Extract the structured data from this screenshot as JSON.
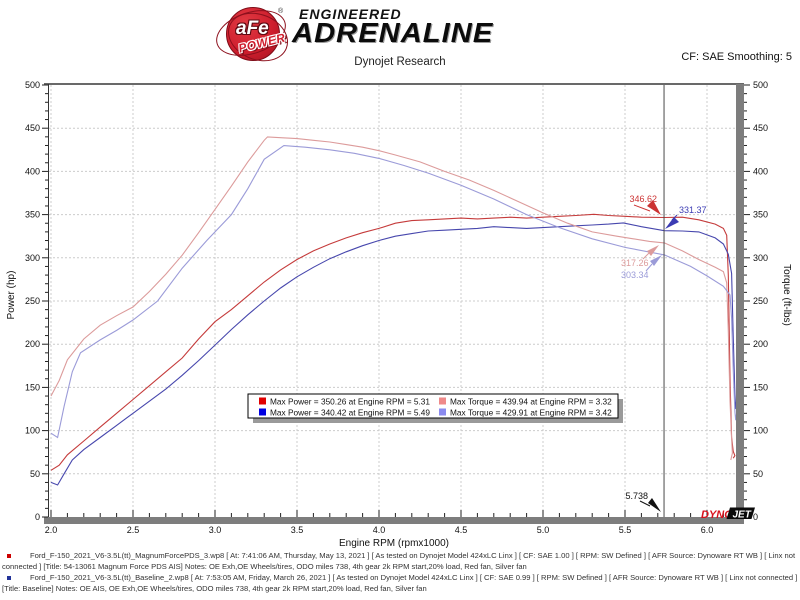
{
  "header": {
    "brand": {
      "ball_text": "aFe",
      "power": "POWER",
      "registered": "®",
      "engineered": "ENGINEERED",
      "adrenaline": "ADRENALINE"
    },
    "subtitle": "Dynojet Research",
    "cf_label": "CF: SAE Smoothing: 5"
  },
  "chart_data": {
    "type": "line",
    "xlabel": "Engine RPM (rpmx1000)",
    "ylabel_left": "Power (hp)",
    "ylabel_right": "Torque (ft-lbs)",
    "xlim": [
      1.98,
      6.19
    ],
    "ylim": [
      0,
      500
    ],
    "x_ticks": {
      "values": [
        2.0,
        2.5,
        3.0,
        3.5,
        4.0,
        4.5,
        5.0,
        5.5,
        6.0
      ],
      "labels": [
        "2.0",
        "2.5",
        "3.0",
        "3.5",
        "4.0",
        "4.5",
        "5.0",
        "5.5",
        "6.0"
      ]
    },
    "x_minor_step": 0.1,
    "y_ticks": {
      "values": [
        0,
        50,
        100,
        150,
        200,
        250,
        300,
        350,
        400,
        450,
        500
      ],
      "labels": [
        "0",
        "50",
        "100",
        "150",
        "200",
        "250",
        "300",
        "350",
        "400",
        "450",
        "500"
      ]
    },
    "y_minor_step": 10,
    "grid": true,
    "cursor_rpm": 5.738,
    "series": [
      {
        "name": "power-magnumforce",
        "color": "#c53b3b",
        "points": [
          [
            2.0,
            54
          ],
          [
            2.05,
            60
          ],
          [
            2.1,
            72
          ],
          [
            2.2,
            88
          ],
          [
            2.3,
            104
          ],
          [
            2.4,
            120
          ],
          [
            2.5,
            136
          ],
          [
            2.6,
            152
          ],
          [
            2.7,
            168
          ],
          [
            2.8,
            184
          ],
          [
            2.9,
            206
          ],
          [
            3.0,
            226
          ],
          [
            3.1,
            240
          ],
          [
            3.2,
            256
          ],
          [
            3.3,
            272
          ],
          [
            3.4,
            286
          ],
          [
            3.5,
            298
          ],
          [
            3.6,
            308
          ],
          [
            3.7,
            316
          ],
          [
            3.8,
            323
          ],
          [
            3.9,
            329
          ],
          [
            4.0,
            334
          ],
          [
            4.1,
            340
          ],
          [
            4.2,
            343
          ],
          [
            4.3,
            344
          ],
          [
            4.4,
            345
          ],
          [
            4.5,
            346
          ],
          [
            4.6,
            345
          ],
          [
            4.7,
            346
          ],
          [
            4.8,
            347
          ],
          [
            4.9,
            346
          ],
          [
            5.0,
            347
          ],
          [
            5.1,
            348
          ],
          [
            5.2,
            349
          ],
          [
            5.31,
            350.3
          ],
          [
            5.4,
            349
          ],
          [
            5.5,
            348
          ],
          [
            5.6,
            347
          ],
          [
            5.74,
            346.6
          ],
          [
            5.85,
            347
          ],
          [
            5.95,
            344
          ],
          [
            6.05,
            339
          ],
          [
            6.1,
            334
          ],
          [
            6.12,
            326
          ],
          [
            6.13,
            280
          ],
          [
            6.14,
            160
          ],
          [
            6.15,
            92
          ],
          [
            6.16,
            76
          ],
          [
            6.17,
            71
          ],
          [
            6.16,
            68
          ]
        ]
      },
      {
        "name": "power-baseline",
        "color": "#4747ad",
        "points": [
          [
            2.0,
            40
          ],
          [
            2.04,
            37
          ],
          [
            2.08,
            50
          ],
          [
            2.13,
            66
          ],
          [
            2.2,
            78
          ],
          [
            2.3,
            92
          ],
          [
            2.4,
            106
          ],
          [
            2.5,
            120
          ],
          [
            2.6,
            134
          ],
          [
            2.7,
            148
          ],
          [
            2.8,
            164
          ],
          [
            2.9,
            181
          ],
          [
            3.0,
            199
          ],
          [
            3.1,
            217
          ],
          [
            3.2,
            234
          ],
          [
            3.3,
            250
          ],
          [
            3.4,
            265
          ],
          [
            3.5,
            278
          ],
          [
            3.6,
            289
          ],
          [
            3.7,
            299
          ],
          [
            3.8,
            307
          ],
          [
            3.9,
            314
          ],
          [
            4.0,
            320
          ],
          [
            4.1,
            325
          ],
          [
            4.2,
            328
          ],
          [
            4.3,
            331
          ],
          [
            4.4,
            332
          ],
          [
            4.5,
            333
          ],
          [
            4.6,
            334
          ],
          [
            4.7,
            336
          ],
          [
            4.8,
            335
          ],
          [
            4.9,
            334
          ],
          [
            5.0,
            335
          ],
          [
            5.1,
            336
          ],
          [
            5.2,
            337
          ],
          [
            5.3,
            338
          ],
          [
            5.4,
            339
          ],
          [
            5.49,
            340.4
          ],
          [
            5.6,
            336
          ],
          [
            5.74,
            331.4
          ],
          [
            5.85,
            331
          ],
          [
            5.95,
            330
          ],
          [
            6.05,
            323
          ],
          [
            6.1,
            316
          ],
          [
            6.13,
            304
          ],
          [
            6.15,
            282
          ],
          [
            6.16,
            210
          ],
          [
            6.17,
            142
          ],
          [
            6.175,
            125
          ],
          [
            6.18,
            133
          ],
          [
            6.185,
            143
          ]
        ]
      },
      {
        "name": "torque-magnumforce",
        "color": "#dc9b9b",
        "points": [
          [
            2.0,
            140
          ],
          [
            2.05,
            158
          ],
          [
            2.1,
            182
          ],
          [
            2.2,
            206
          ],
          [
            2.3,
            222
          ],
          [
            2.4,
            233
          ],
          [
            2.5,
            243
          ],
          [
            2.6,
            261
          ],
          [
            2.7,
            281
          ],
          [
            2.8,
            303
          ],
          [
            2.9,
            329
          ],
          [
            3.0,
            356
          ],
          [
            3.1,
            383
          ],
          [
            3.2,
            411
          ],
          [
            3.3,
            436
          ],
          [
            3.32,
            439.9
          ],
          [
            3.4,
            439
          ],
          [
            3.5,
            438
          ],
          [
            3.6,
            436
          ],
          [
            3.7,
            434
          ],
          [
            3.8,
            431
          ],
          [
            3.9,
            428
          ],
          [
            4.0,
            424
          ],
          [
            4.1,
            419
          ],
          [
            4.25,
            411
          ],
          [
            4.4,
            400
          ],
          [
            4.55,
            390
          ],
          [
            4.7,
            378
          ],
          [
            4.85,
            365
          ],
          [
            5.0,
            352
          ],
          [
            5.15,
            340
          ],
          [
            5.3,
            330
          ],
          [
            5.45,
            325
          ],
          [
            5.55,
            322
          ],
          [
            5.65,
            319
          ],
          [
            5.74,
            317.3
          ],
          [
            5.85,
            308
          ],
          [
            5.95,
            298
          ],
          [
            6.05,
            289
          ],
          [
            6.1,
            284
          ],
          [
            6.12,
            271
          ],
          [
            6.13,
            215
          ],
          [
            6.14,
            135
          ],
          [
            6.15,
            90
          ],
          [
            6.155,
            74
          ],
          [
            6.145,
            66
          ]
        ]
      },
      {
        "name": "torque-baseline",
        "color": "#9b9bd8",
        "points": [
          [
            2.0,
            97
          ],
          [
            2.04,
            92
          ],
          [
            2.08,
            128
          ],
          [
            2.13,
            168
          ],
          [
            2.18,
            190
          ],
          [
            2.3,
            205
          ],
          [
            2.4,
            216
          ],
          [
            2.5,
            228
          ],
          [
            2.65,
            250
          ],
          [
            2.8,
            288
          ],
          [
            2.95,
            320
          ],
          [
            3.1,
            350
          ],
          [
            3.2,
            380
          ],
          [
            3.3,
            414
          ],
          [
            3.42,
            429.9
          ],
          [
            3.55,
            428
          ],
          [
            3.7,
            425
          ],
          [
            3.85,
            421
          ],
          [
            4.0,
            415
          ],
          [
            4.15,
            407
          ],
          [
            4.3,
            398
          ],
          [
            4.5,
            384
          ],
          [
            4.7,
            368
          ],
          [
            4.9,
            350
          ],
          [
            5.1,
            335
          ],
          [
            5.3,
            322
          ],
          [
            5.5,
            312
          ],
          [
            5.74,
            303.3
          ],
          [
            5.9,
            290
          ],
          [
            6.0,
            279
          ],
          [
            6.1,
            267
          ],
          [
            6.14,
            257
          ],
          [
            6.15,
            230
          ],
          [
            6.16,
            172
          ],
          [
            6.17,
            122
          ],
          [
            6.175,
            112
          ],
          [
            6.18,
            119
          ],
          [
            6.185,
            128
          ]
        ]
      }
    ],
    "legend": {
      "position": "inside-bottom-center",
      "entries": [
        {
          "color": "#e10000",
          "label": "Max Power = 350.26 at Engine RPM = 5.31"
        },
        {
          "color": "#ef8a8a",
          "label": "Max Torque = 439.94 at Engine RPM = 3.32"
        },
        {
          "color": "#0000e1",
          "label": "Max Power = 340.42 at Engine RPM = 5.49"
        },
        {
          "color": "#8a8aef",
          "label": "Max Torque = 429.91 at Engine RPM = 3.42"
        }
      ]
    },
    "annotations": [
      {
        "text": "346.62",
        "color": "#cc3333"
      },
      {
        "text": "331.37",
        "color": "#3c3cb4"
      },
      {
        "text": "317.26",
        "color": "#dc9b9b"
      },
      {
        "text": "303.34",
        "color": "#9b9bd8"
      },
      {
        "text": "5.738",
        "color": "#111111"
      }
    ],
    "watermark": {
      "dyno": "DYNO",
      "jet": "JET"
    }
  },
  "runs": [
    {
      "bullet_color": "#cc0000",
      "text": "Ford_F-150_2021_V6-3.5L(tt)_MagnumForcePDS_3.wp8 [ At: 7:41:06 AM, Thursday, May 13, 2021 ] [ As tested on Dynojet Model 424xLC Linx ] [ CF: SAE 1.00 ] [ RPM: SW Defined ] [ AFR Source: Dynoware RT WB ] [ Linx not connected ] [Title: 54-13061 Magnum Force PDS AIS]  Notes: OE Exh,OE Wheels/tires, ODO miles 738, 4th gear 2k RPM start,20% load, Red fan, Silver fan"
    },
    {
      "bullet_color": "#223399",
      "text": "Ford_F-150_2021_V6-3.5L(tt)_Baseline_2.wp8 [ At: 7:53:05 AM, Friday, March 26, 2021 ] [ As tested on Dynojet Model 424xLC Linx ] [ CF: SAE 0.99 ] [ RPM: SW Defined ] [ AFR Source: Dynoware RT WB ] [ Linx not connected ] [Title: Baseline]  Notes: OE AIS, OE Exh,OE Wheels/tires, ODO miles 738, 4th gear 2k RPM start,20% load, Red fan, Silver fan"
    }
  ]
}
